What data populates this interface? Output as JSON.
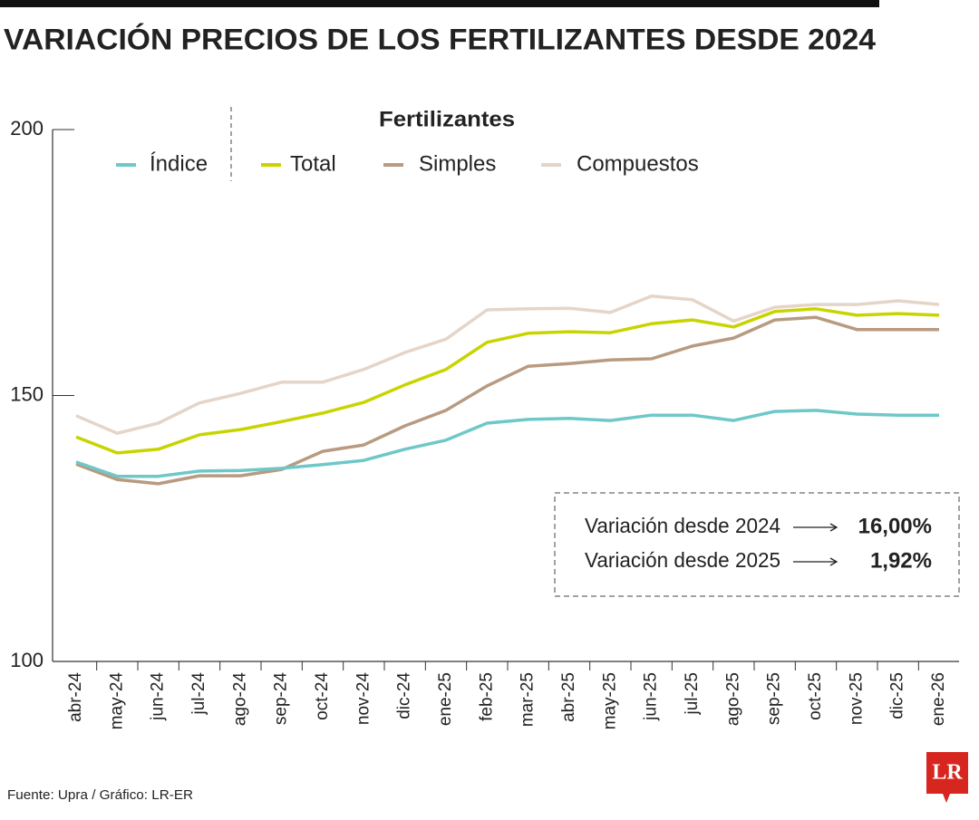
{
  "chart_data": {
    "type": "line",
    "title": "VARIACIÓN PRECIOS DE LOS FERTILIZANTES DESDE 2024",
    "legend_title": "Fertilizantes",
    "categories": [
      "abr-24",
      "may-24",
      "jun-24",
      "jul-24",
      "ago-24",
      "sep-24",
      "oct-24",
      "nov-24",
      "dic-24",
      "ene-25",
      "feb-25",
      "mar-25",
      "abr-25",
      "may-25",
      "jun-25",
      "jul-25",
      "ago-25",
      "sep-25",
      "oct-25",
      "nov-25",
      "dic-25",
      "ene-26"
    ],
    "series": [
      {
        "name": "Índice",
        "color": "#6ec8c8",
        "values": [
          137.5,
          134.8,
          134.8,
          135.8,
          135.9,
          136.3,
          137,
          137.8,
          139.9,
          141.6,
          144.8,
          145.5,
          145.7,
          145.3,
          146.3,
          146.3,
          145.3,
          147,
          147.2,
          146.5,
          146.3,
          146.3
        ]
      },
      {
        "name": "Total",
        "color": "#c8d400",
        "values": [
          142.2,
          139.2,
          139.9,
          142.6,
          143.6,
          145.1,
          146.7,
          148.7,
          152,
          154.9,
          160,
          161.7,
          162,
          161.8,
          163.5,
          164.2,
          162.9,
          165.8,
          166.3,
          165.1,
          165.4,
          165.1
        ]
      },
      {
        "name": "Simples",
        "color": "#b89a80",
        "values": [
          137.1,
          134.2,
          133.4,
          134.9,
          134.9,
          136.1,
          139.5,
          140.7,
          144.3,
          147.2,
          151.8,
          155.5,
          156,
          156.7,
          156.9,
          159.3,
          160.8,
          164.2,
          164.7,
          162.4,
          162.4,
          162.4
        ]
      },
      {
        "name": "Compuestos",
        "color": "#e5d5c8",
        "values": [
          146.2,
          142.9,
          144.8,
          148.6,
          150.4,
          152.5,
          152.5,
          154.9,
          158.1,
          160.6,
          166.1,
          166.3,
          166.4,
          165.6,
          168.7,
          168,
          164,
          166.6,
          167.1,
          167.1,
          167.8,
          167.1
        ]
      }
    ],
    "ylim": [
      100,
      200
    ],
    "yticks": [
      100,
      150,
      200
    ],
    "annotations": [
      {
        "label": "Variación desde 2024",
        "value": 16.0,
        "value_label": "16,00%"
      },
      {
        "label": "Variación desde 2025",
        "value": 1.92,
        "value_label": "1,92%"
      }
    ],
    "source": "Fuente: Upra / Gráfico: LR-ER",
    "logo": "LR"
  }
}
